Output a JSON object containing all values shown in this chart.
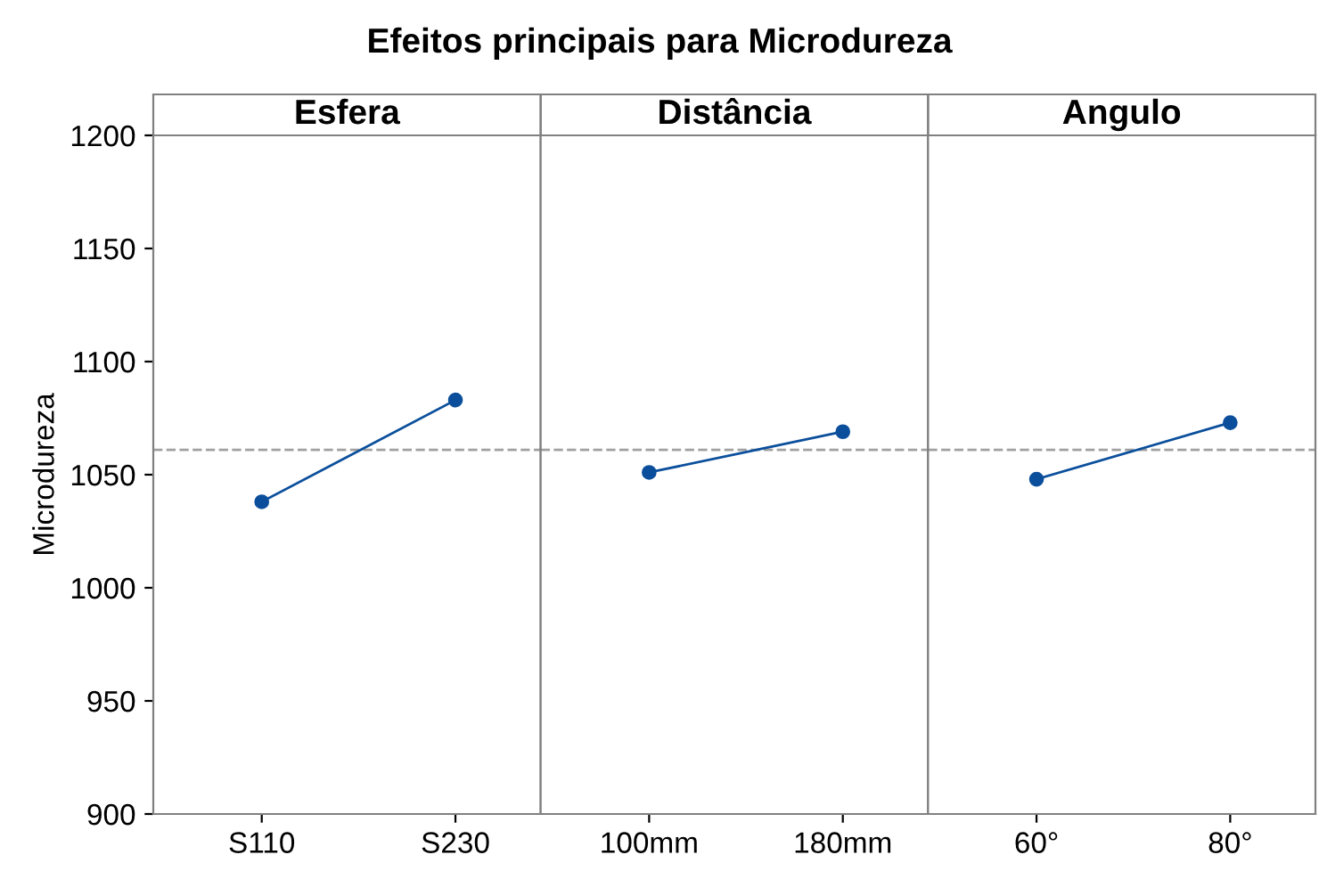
{
  "chart_data": [
    {
      "type": "line",
      "title": "Esfera",
      "annotations": [
        "Efeitos principais para Microdureza"
      ],
      "ylabel": "Microdureza",
      "categories": [
        "S110",
        "S230"
      ],
      "series": [
        {
          "color": "#0b4f9c",
          "values": [
            1038,
            1083
          ]
        }
      ],
      "ylim": [
        900,
        1200
      ],
      "yticks": [
        900,
        950,
        1000,
        1050,
        1100,
        1150,
        1200
      ],
      "ref_lines": [
        {
          "axis": "y",
          "value": 1061,
          "color": "#a0a0a0",
          "line_style": "dashed"
        }
      ],
      "marker": "circle",
      "line_style": "solid",
      "grid": false
    },
    {
      "type": "line",
      "title": "Distância",
      "categories": [
        "100mm",
        "180mm"
      ],
      "series": [
        {
          "color": "#0b4f9c",
          "values": [
            1051,
            1069
          ]
        }
      ],
      "ylim": [
        900,
        1200
      ],
      "yticks": [
        900,
        950,
        1000,
        1050,
        1100,
        1150,
        1200
      ],
      "tick_labels": "x",
      "ref_lines": [
        {
          "axis": "y",
          "value": 1061,
          "color": "#a0a0a0",
          "line_style": "dashed"
        }
      ],
      "marker": "circle",
      "line_style": "solid",
      "grid": false
    },
    {
      "type": "line",
      "title": "Angulo",
      "categories": [
        "60°",
        "80°"
      ],
      "series": [
        {
          "color": "#0b4f9c",
          "values": [
            1048,
            1073
          ]
        }
      ],
      "ylim": [
        900,
        1200
      ],
      "yticks": [
        900,
        950,
        1000,
        1050,
        1100,
        1150,
        1200
      ],
      "tick_labels": "x",
      "ref_lines": [
        {
          "axis": "y",
          "value": 1061,
          "color": "#a0a0a0",
          "line_style": "dashed"
        }
      ],
      "marker": "circle",
      "line_style": "solid",
      "grid": false
    }
  ]
}
